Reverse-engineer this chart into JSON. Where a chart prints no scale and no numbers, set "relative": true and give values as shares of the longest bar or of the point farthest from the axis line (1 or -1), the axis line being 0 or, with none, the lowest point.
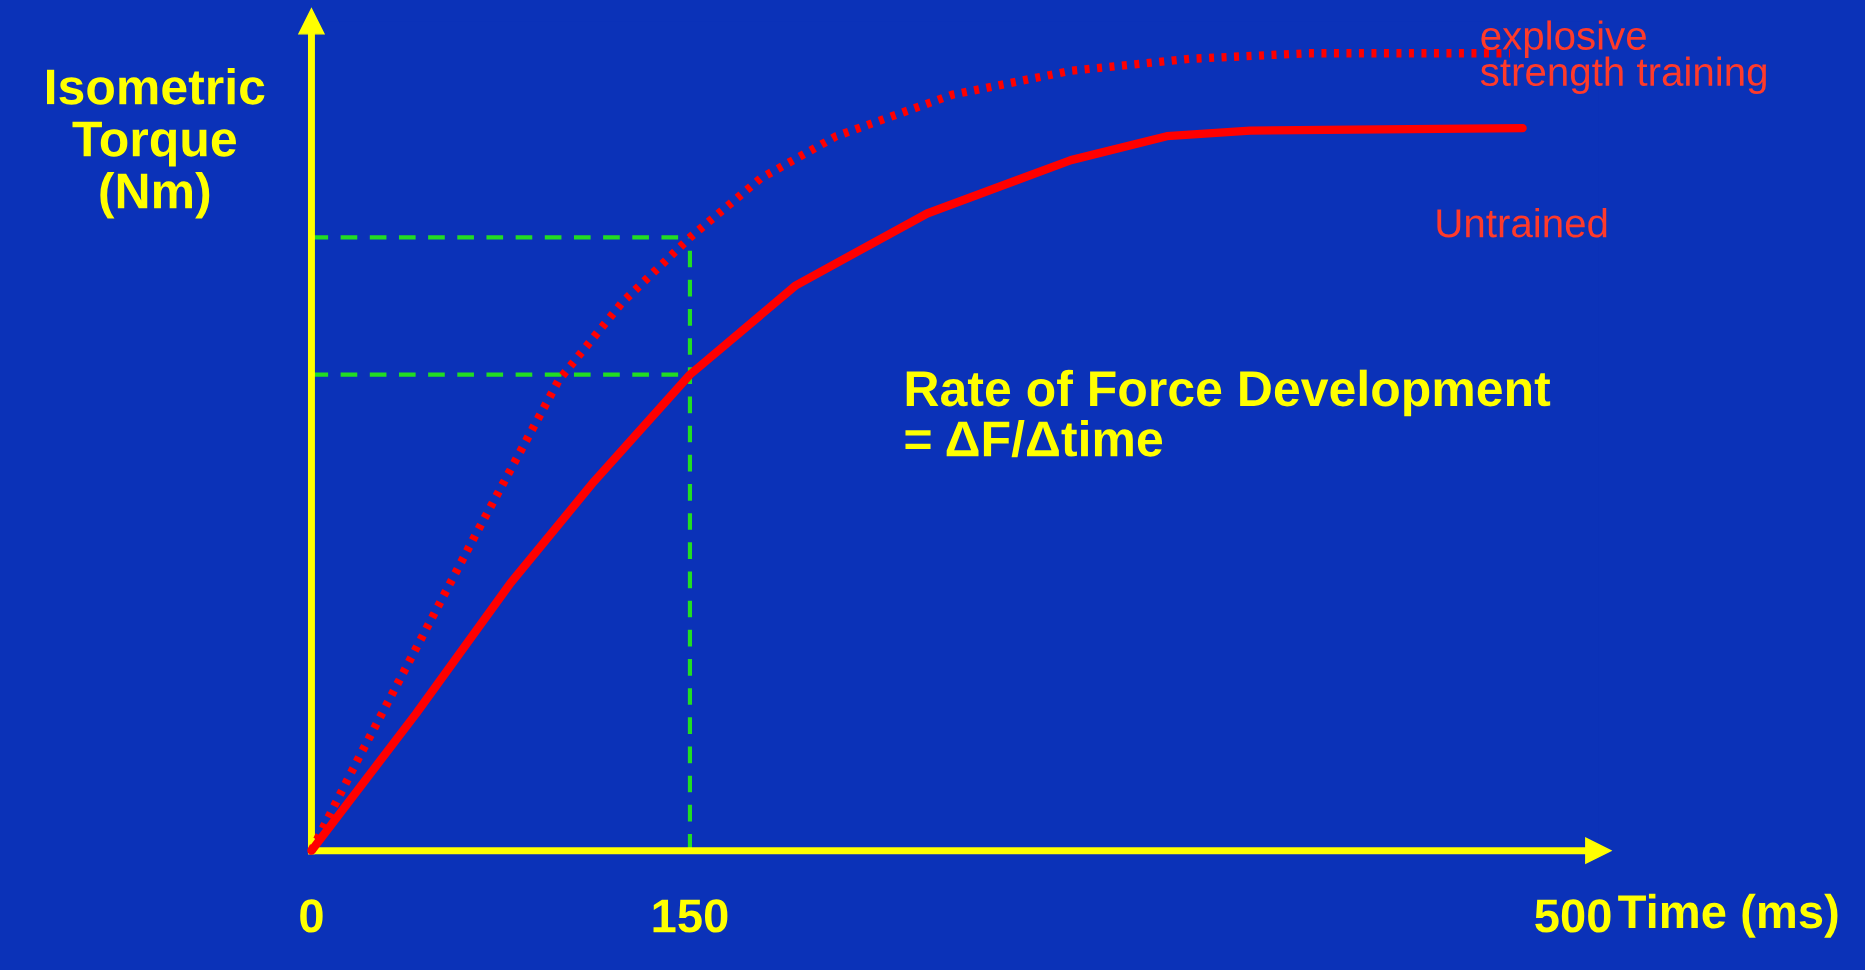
{
  "chart_data": {
    "type": "line",
    "relative": true,
    "xlabel": "Time (ms)",
    "ylabel": "Isometric\nTorque\n(Nm)",
    "xlim": [
      0,
      510
    ],
    "xticks": [
      0,
      150,
      500
    ],
    "grid": false,
    "marker": "none",
    "annotations": [
      "Rate of Force Development\n= ΔF/Δtime"
    ],
    "ref_lines": [
      {
        "axis": "x",
        "value": 150,
        "color": "#22dd22",
        "line_style": "dashed"
      },
      {
        "axis": "y",
        "value": 0.769,
        "color": "#22dd22",
        "line_style": "dashed"
      },
      {
        "axis": "y",
        "value": 0.597,
        "color": "#22dd22",
        "line_style": "dashed"
      }
    ],
    "series": [
      {
        "name": "explosive\nstrength training",
        "color": "#ff0000",
        "line_style": "dotted",
        "x": [
          0,
          18,
          41.5,
          65,
          98,
          123,
          150,
          178,
          208,
          254,
          301,
          348,
          395,
          442,
          475
        ],
        "values": [
          0,
          0.112,
          0.254,
          0.396,
          0.59,
          0.687,
          0.769,
          0.843,
          0.896,
          0.948,
          0.978,
          0.993,
          1,
          1,
          1
        ]
      },
      {
        "name": "Untrained",
        "color": "#ff0000",
        "line_style": "solid",
        "x": [
          0,
          41.5,
          79,
          112,
          150,
          192,
          244,
          301,
          339,
          372,
          480
        ],
        "values": [
          0,
          0.172,
          0.336,
          0.463,
          0.597,
          0.709,
          0.799,
          0.866,
          0.896,
          0.903,
          0.906
        ]
      }
    ]
  }
}
